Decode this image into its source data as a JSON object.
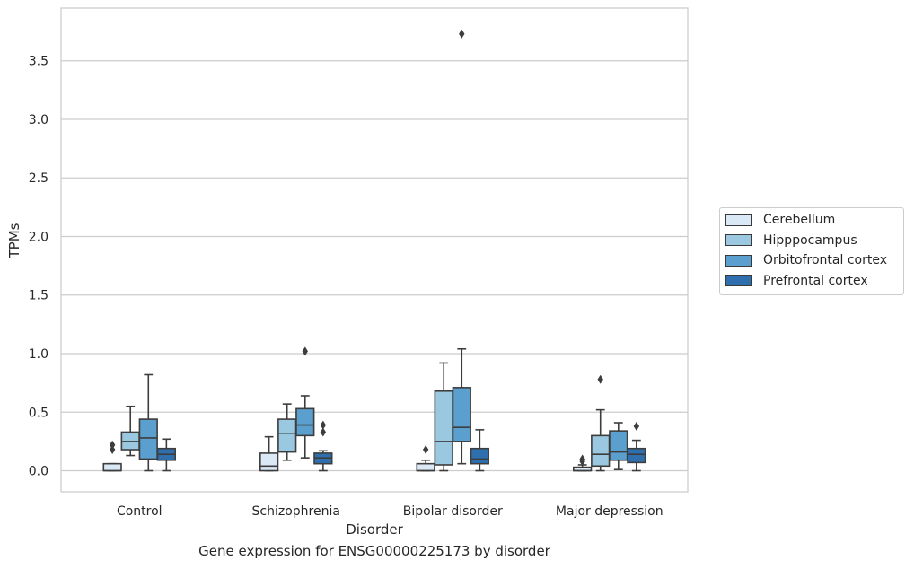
{
  "caption": "Gene expression for ENSG00000225173 by disorder",
  "chart_data": {
    "type": "box",
    "title": "",
    "xlabel": "Disorder",
    "ylabel": "TPMs",
    "ylim": [
      -0.18,
      3.95
    ],
    "yticks": [
      0.0,
      0.5,
      1.0,
      1.5,
      2.0,
      2.5,
      3.0,
      3.5
    ],
    "ytick_labels": [
      "0.0",
      "0.5",
      "1.0",
      "1.5",
      "2.0",
      "2.5",
      "3.0",
      "3.5"
    ],
    "grid": "horizontal",
    "legend_position": "right",
    "categories": [
      "Control",
      "Schizophrenia",
      "Bipolar disorder",
      "Major depression"
    ],
    "series": [
      {
        "name": "Cerebellum",
        "color": "#dbe9f6",
        "boxes": [
          {
            "whislo": 0.0,
            "q1": 0.0,
            "med": 0.0,
            "q3": 0.06,
            "whishi": 0.06,
            "fliers": [
              0.18,
              0.22
            ]
          },
          {
            "whislo": 0.0,
            "q1": 0.0,
            "med": 0.04,
            "q3": 0.15,
            "whishi": 0.29,
            "fliers": []
          },
          {
            "whislo": 0.0,
            "q1": 0.0,
            "med": 0.0,
            "q3": 0.06,
            "whishi": 0.09,
            "fliers": [
              0.18
            ]
          },
          {
            "whislo": 0.0,
            "q1": 0.0,
            "med": 0.0,
            "q3": 0.03,
            "whishi": 0.05,
            "fliers": [
              0.08,
              0.1
            ]
          }
        ]
      },
      {
        "name": "Hipppocampus",
        "color": "#9ac8e0",
        "boxes": [
          {
            "whislo": 0.13,
            "q1": 0.18,
            "med": 0.25,
            "q3": 0.33,
            "whishi": 0.55,
            "fliers": []
          },
          {
            "whislo": 0.09,
            "q1": 0.16,
            "med": 0.32,
            "q3": 0.44,
            "whishi": 0.57,
            "fliers": []
          },
          {
            "whislo": 0.0,
            "q1": 0.05,
            "med": 0.25,
            "q3": 0.68,
            "whishi": 0.92,
            "fliers": []
          },
          {
            "whislo": 0.0,
            "q1": 0.04,
            "med": 0.14,
            "q3": 0.3,
            "whishi": 0.52,
            "fliers": [
              0.78
            ]
          }
        ]
      },
      {
        "name": "Orbitofrontal cortex",
        "color": "#5a9fcd",
        "boxes": [
          {
            "whislo": 0.0,
            "q1": 0.1,
            "med": 0.28,
            "q3": 0.44,
            "whishi": 0.82,
            "fliers": []
          },
          {
            "whislo": 0.11,
            "q1": 0.3,
            "med": 0.39,
            "q3": 0.53,
            "whishi": 0.64,
            "fliers": [
              1.02
            ]
          },
          {
            "whislo": 0.06,
            "q1": 0.25,
            "med": 0.37,
            "q3": 0.71,
            "whishi": 1.04,
            "fliers": [
              3.73
            ]
          },
          {
            "whislo": 0.01,
            "q1": 0.09,
            "med": 0.16,
            "q3": 0.34,
            "whishi": 0.41,
            "fliers": []
          }
        ]
      },
      {
        "name": "Prefrontal cortex",
        "color": "#2f6fae",
        "boxes": [
          {
            "whislo": 0.0,
            "q1": 0.09,
            "med": 0.14,
            "q3": 0.19,
            "whishi": 0.27,
            "fliers": []
          },
          {
            "whislo": 0.0,
            "q1": 0.06,
            "med": 0.11,
            "q3": 0.15,
            "whishi": 0.17,
            "fliers": [
              0.33,
              0.39
            ]
          },
          {
            "whislo": 0.0,
            "q1": 0.06,
            "med": 0.1,
            "q3": 0.19,
            "whishi": 0.35,
            "fliers": []
          },
          {
            "whislo": 0.0,
            "q1": 0.07,
            "med": 0.14,
            "q3": 0.19,
            "whishi": 0.26,
            "fliers": [
              0.38
            ]
          }
        ]
      }
    ]
  }
}
